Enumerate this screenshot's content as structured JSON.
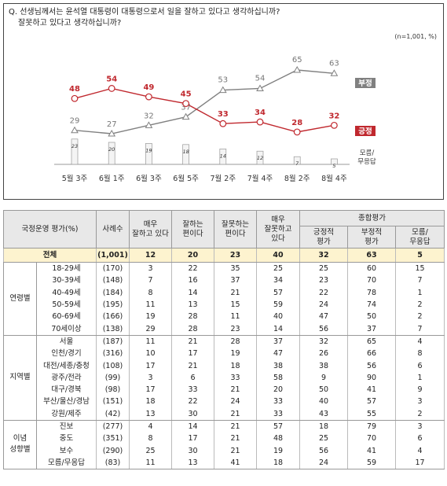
{
  "question": {
    "line1": "Q. 선생님께서는 윤석열 대통령이 대통령으로서 일을 잘하고 있다고 생각하십니까?",
    "line2": "잘못하고 있다고 생각하십니까?"
  },
  "note": "(n=1,001, %)",
  "chart_data": {
    "type": "line",
    "categories": [
      "5월 3주",
      "6월 1주",
      "6월 3주",
      "6월 5주",
      "7월 2주",
      "7월 4주",
      "8월 2주",
      "8월 4주"
    ],
    "series": [
      {
        "name": "부정",
        "values": [
          29,
          27,
          32,
          37,
          53,
          54,
          65,
          63
        ],
        "color": "#808080",
        "marker": "triangle"
      },
      {
        "name": "긍정",
        "values": [
          48,
          54,
          49,
          45,
          33,
          34,
          28,
          32
        ],
        "color": "#c0282e",
        "marker": "circle"
      },
      {
        "name": "모름/무응답",
        "values": [
          23,
          20,
          19,
          18,
          14,
          12,
          7,
          5
        ],
        "type": "bar"
      }
    ],
    "legend_labels": {
      "neg": "부정",
      "pos": "긍정",
      "dk_line1": "모름/",
      "dk_line2": "무응답"
    },
    "legend_placement": "right",
    "grid": false
  },
  "table": {
    "headers": {
      "category": "국정운영 평가(%)",
      "sample": "사례수",
      "very_good": [
        "매우",
        "잘하고 있다"
      ],
      "good": [
        "잘하는",
        "편이다"
      ],
      "bad": [
        "잘못하는",
        "편이다"
      ],
      "very_bad": [
        "매우",
        "잘못하고",
        "있다"
      ],
      "summary": "종합평가",
      "pos": [
        "긍정적",
        "평가"
      ],
      "neg": [
        "부정적",
        "평가"
      ],
      "dk": [
        "모름/",
        "무응답"
      ]
    },
    "total": {
      "label": "전체",
      "n": "(1,001)",
      "values": [
        "12",
        "20",
        "23",
        "40",
        "32",
        "63",
        "5"
      ]
    },
    "groups": [
      {
        "name": [
          "연령별"
        ],
        "rows": [
          {
            "label": "18-29세",
            "n": "(170)",
            "values": [
              "3",
              "22",
              "35",
              "25",
              "25",
              "60",
              "15"
            ]
          },
          {
            "label": "30-39세",
            "n": "(148)",
            "values": [
              "7",
              "16",
              "37",
              "34",
              "23",
              "70",
              "7"
            ]
          },
          {
            "label": "40-49세",
            "n": "(184)",
            "values": [
              "8",
              "14",
              "21",
              "57",
              "22",
              "78",
              "1"
            ]
          },
          {
            "label": "50-59세",
            "n": "(195)",
            "values": [
              "11",
              "13",
              "15",
              "59",
              "24",
              "74",
              "2"
            ]
          },
          {
            "label": "60-69세",
            "n": "(166)",
            "values": [
              "19",
              "28",
              "11",
              "40",
              "47",
              "50",
              "2"
            ]
          },
          {
            "label": "70세이상",
            "n": "(138)",
            "values": [
              "29",
              "28",
              "23",
              "14",
              "56",
              "37",
              "7"
            ]
          }
        ]
      },
      {
        "name": [
          "지역별"
        ],
        "rows": [
          {
            "label": "서울",
            "n": "(187)",
            "values": [
              "11",
              "21",
              "28",
              "37",
              "32",
              "65",
              "4"
            ]
          },
          {
            "label": "인천/경기",
            "n": "(316)",
            "values": [
              "10",
              "17",
              "19",
              "47",
              "26",
              "66",
              "8"
            ]
          },
          {
            "label": "대전/세종/충청",
            "n": "(108)",
            "values": [
              "17",
              "21",
              "18",
              "38",
              "38",
              "56",
              "6"
            ]
          },
          {
            "label": "광주/전라",
            "n": "(99)",
            "values": [
              "3",
              "6",
              "33",
              "58",
              "9",
              "90",
              "1"
            ]
          },
          {
            "label": "대구/경북",
            "n": "(98)",
            "values": [
              "17",
              "33",
              "21",
              "20",
              "50",
              "41",
              "9"
            ]
          },
          {
            "label": "부산/울산/경남",
            "n": "(151)",
            "values": [
              "18",
              "22",
              "24",
              "33",
              "40",
              "57",
              "3"
            ]
          },
          {
            "label": "강원/제주",
            "n": "(42)",
            "values": [
              "13",
              "30",
              "21",
              "33",
              "43",
              "55",
              "2"
            ]
          }
        ]
      },
      {
        "name": [
          "이념",
          "성향별"
        ],
        "rows": [
          {
            "label": "진보",
            "n": "(277)",
            "values": [
              "4",
              "14",
              "21",
              "57",
              "18",
              "79",
              "3"
            ]
          },
          {
            "label": "중도",
            "n": "(351)",
            "values": [
              "8",
              "17",
              "21",
              "48",
              "25",
              "70",
              "6"
            ]
          },
          {
            "label": "보수",
            "n": "(290)",
            "values": [
              "25",
              "30",
              "21",
              "19",
              "56",
              "41",
              "4"
            ]
          },
          {
            "label": "모름/무응답",
            "n": "(83)",
            "values": [
              "11",
              "13",
              "41",
              "18",
              "24",
              "59",
              "17"
            ]
          }
        ]
      }
    ]
  }
}
